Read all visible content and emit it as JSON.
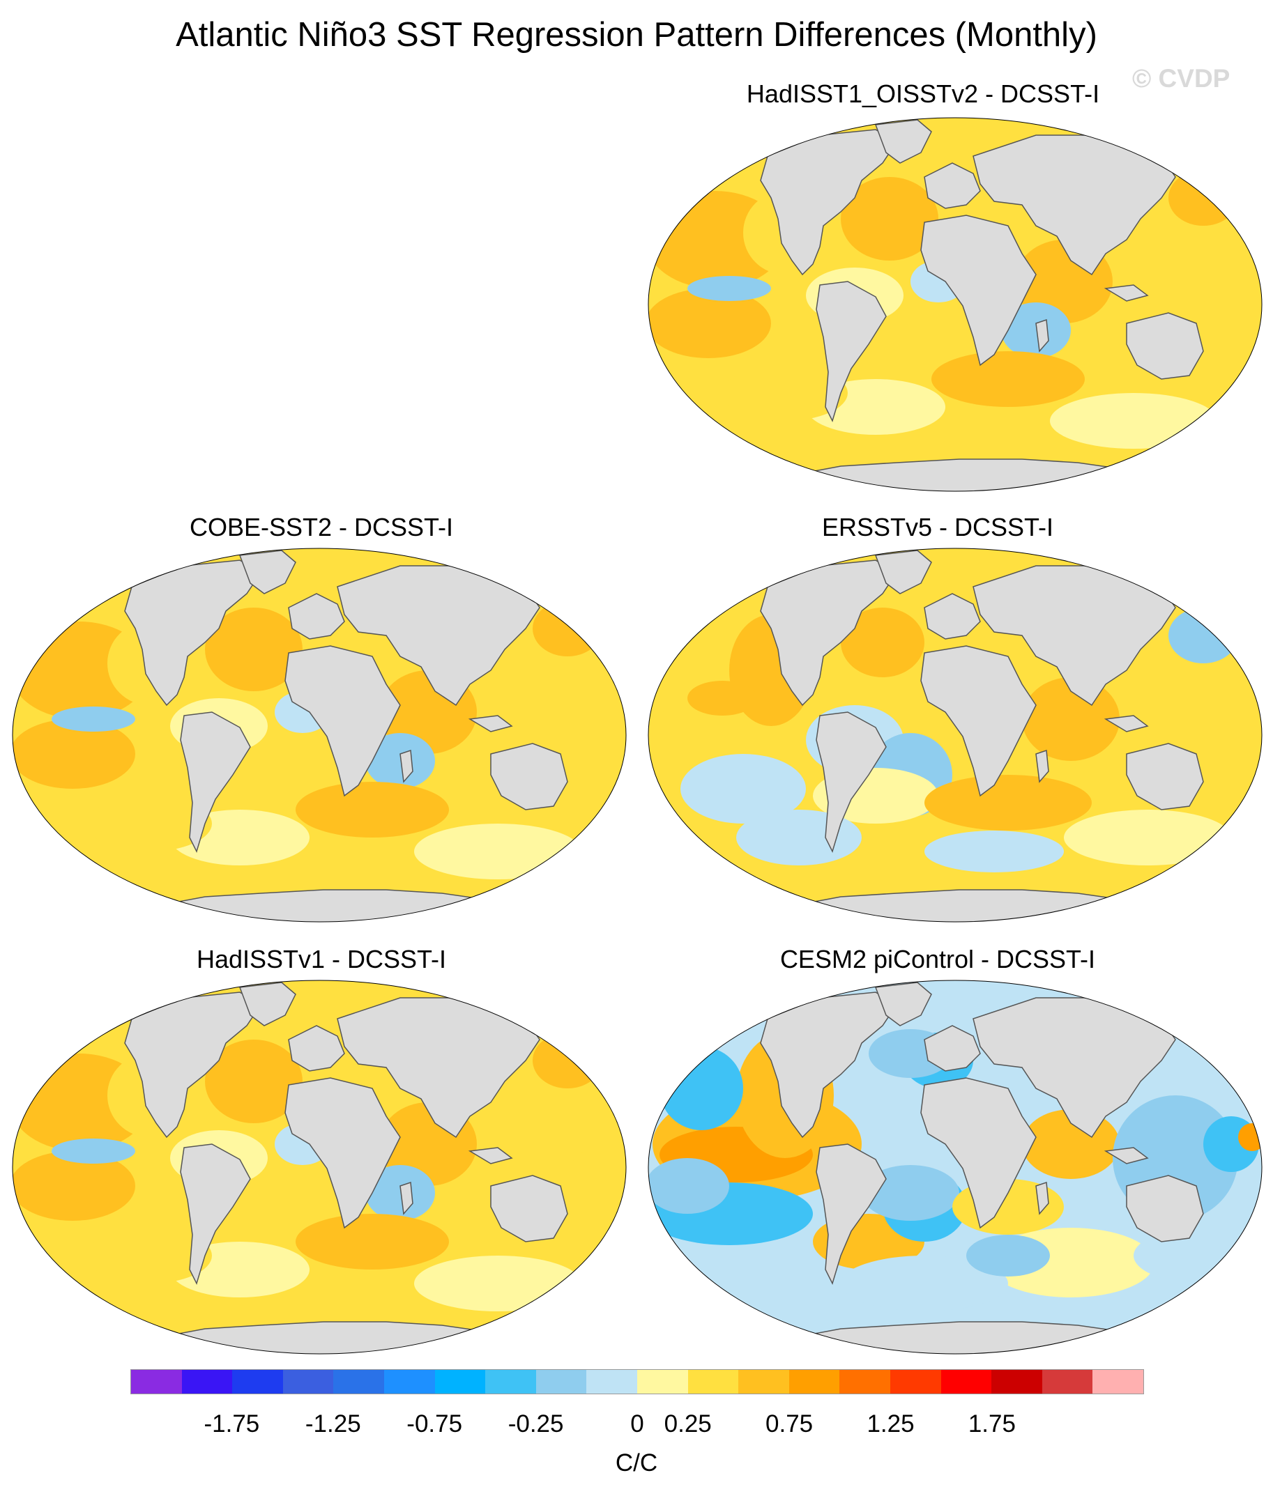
{
  "figure": {
    "title": "Atlantic Niño3 SST Regression Pattern Differences (Monthly)",
    "watermark": "© CVDP"
  },
  "panels": [
    {
      "label": "HadISST1_OISSTv2 - DCSST-I",
      "dominant": "warm_light"
    },
    {
      "label": "COBE-SST2 - DCSST-I",
      "dominant": "warm_light"
    },
    {
      "label": "ERSSTv5 - DCSST-I",
      "dominant": "mixed"
    },
    {
      "label": "HadISSTv1 - DCSST-I",
      "dominant": "warm_light"
    },
    {
      "label": "CESM2 piControl - DCSST-I",
      "dominant": "dipole"
    }
  ],
  "colorbar": {
    "unit": "C/C",
    "colors": [
      "#8a2be2",
      "#3a15f5",
      "#1e3cf0",
      "#3b5fe0",
      "#2a72e8",
      "#1e90ff",
      "#00b2ff",
      "#3fc2f5",
      "#8fcdee",
      "#bfe3f5",
      "#fff8a0",
      "#ffe040",
      "#ffc020",
      "#ff9f00",
      "#ff7000",
      "#ff3a00",
      "#ff0000",
      "#cc0000",
      "#d63a3a",
      "#ffb0b0"
    ],
    "tick_labels": [
      "-1.75",
      "-1.25",
      "-0.75",
      "-0.25",
      "0",
      "0.25",
      "0.75",
      "1.25",
      "1.75"
    ]
  },
  "chart_data": {
    "type": "heatmap",
    "title": "Atlantic Niño3 SST Regression Pattern Differences (Monthly)",
    "colorbar_label": "C/C",
    "color_levels": [
      -2.0,
      -1.75,
      -1.5,
      -1.25,
      -1.0,
      -0.75,
      -0.5,
      -0.25,
      -0.125,
      0,
      0.125,
      0.25,
      0.5,
      0.75,
      1.0,
      1.25,
      1.5,
      1.75,
      2.0
    ],
    "panels": [
      "HadISST1_OISSTv2 - DCSST-I",
      "COBE-SST2 - DCSST-I",
      "ERSSTv5 - DCSST-I",
      "HadISSTv1 - DCSST-I",
      "CESM2 piControl - DCSST-I"
    ]
  }
}
